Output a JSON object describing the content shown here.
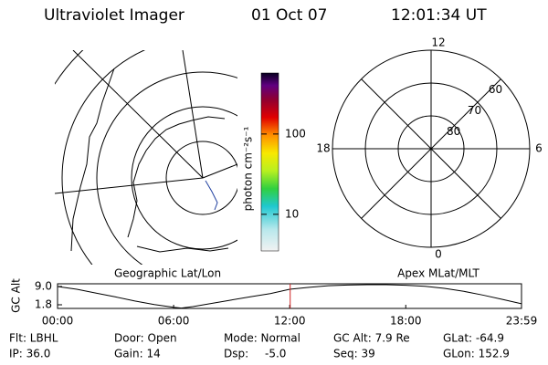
{
  "header": {
    "title": "Ultraviolet Imager",
    "date": "01 Oct 07",
    "time": "12:01:34 UT"
  },
  "map": {
    "label": "Geographic Lat/Lon"
  },
  "colorbar": {
    "label": "photon cm⁻²s⁻¹",
    "scale": "log",
    "lim": [
      3.5,
      575
    ],
    "ticks": [
      10,
      100
    ]
  },
  "polar": {
    "label": "Apex MLat/MLT",
    "rlim": [
      90,
      60
    ],
    "rings": [
      80,
      70,
      60
    ],
    "hours": [
      12,
      18,
      6,
      0
    ],
    "color": "#000000"
  },
  "orbit": {
    "ylabel": "GC Alt",
    "ylim": [
      0.36,
      10.08
    ],
    "yticks": [
      {
        "value": 9.0,
        "label": "9.0"
      },
      {
        "value": 1.8,
        "label": "1.8"
      }
    ],
    "xlim": [
      0,
      23.983
    ],
    "xticks": [
      {
        "value": 0,
        "label": "00:00"
      },
      {
        "value": 6,
        "label": "06:00"
      },
      {
        "value": 12,
        "label": "12:00"
      },
      {
        "value": 18,
        "label": "18:00"
      },
      {
        "value": 23.983,
        "label": "23:59"
      }
    ],
    "x": [
      0,
      1,
      2,
      3,
      4,
      5,
      6,
      6.4,
      7,
      8,
      9,
      10,
      11,
      12,
      13,
      14,
      15,
      16,
      17,
      18,
      19,
      20,
      21,
      22,
      23,
      23.983
    ],
    "values": [
      9.0,
      7.9,
      6.4,
      4.9,
      3.3,
      1.9,
      0.8,
      0.5,
      1.1,
      2.4,
      3.7,
      5.0,
      6.2,
      7.9,
      8.7,
      9.3,
      9.6,
      9.7,
      9.7,
      9.5,
      9.1,
      8.3,
      7.1,
      5.6,
      3.9,
      2.2
    ],
    "current": 12.026,
    "current_color": "#cc2222"
  },
  "info": {
    "rows": [
      [
        "Flt: LBHL",
        "Door: Open",
        "Mode: Normal",
        "GC Alt: 7.9 Re",
        "GLat: -64.9"
      ],
      [
        "IP: 36.0",
        "Gain: 14",
        "Dsp:",
        "-5.0",
        "Seq: 39",
        "GLon: 152.9"
      ]
    ]
  }
}
